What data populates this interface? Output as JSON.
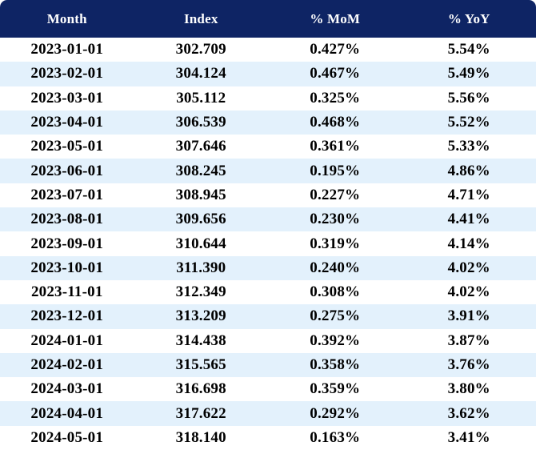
{
  "colors": {
    "header_bg": "#0e2464",
    "header_text": "#ffffff",
    "row_bg": "#ffffff",
    "row_alt_bg": "#e3f1fc",
    "body_text": "#000000"
  },
  "chart_data": {
    "type": "table",
    "title": "",
    "columns": [
      "Month",
      "Index",
      "% MoM",
      "% YoY"
    ],
    "rows": [
      [
        "2023-01-01",
        "302.709",
        "0.427%",
        "5.54%"
      ],
      [
        "2023-02-01",
        "304.124",
        "0.467%",
        "5.49%"
      ],
      [
        "2023-03-01",
        "305.112",
        "0.325%",
        "5.56%"
      ],
      [
        "2023-04-01",
        "306.539",
        "0.468%",
        "5.52%"
      ],
      [
        "2023-05-01",
        "307.646",
        "0.361%",
        "5.33%"
      ],
      [
        "2023-06-01",
        "308.245",
        "0.195%",
        "4.86%"
      ],
      [
        "2023-07-01",
        "308.945",
        "0.227%",
        "4.71%"
      ],
      [
        "2023-08-01",
        "309.656",
        "0.230%",
        "4.41%"
      ],
      [
        "2023-09-01",
        "310.644",
        "0.319%",
        "4.14%"
      ],
      [
        "2023-10-01",
        "311.390",
        "0.240%",
        "4.02%"
      ],
      [
        "2023-11-01",
        "312.349",
        "0.308%",
        "4.02%"
      ],
      [
        "2023-12-01",
        "313.209",
        "0.275%",
        "3.91%"
      ],
      [
        "2024-01-01",
        "314.438",
        "0.392%",
        "3.87%"
      ],
      [
        "2024-02-01",
        "315.565",
        "0.358%",
        "3.76%"
      ],
      [
        "2024-03-01",
        "316.698",
        "0.359%",
        "3.80%"
      ],
      [
        "2024-04-01",
        "317.622",
        "0.292%",
        "3.62%"
      ],
      [
        "2024-05-01",
        "318.140",
        "0.163%",
        "3.41%"
      ]
    ],
    "layout": {
      "grid": false,
      "alternating_row_shading": true,
      "text_alignment": "center"
    }
  }
}
